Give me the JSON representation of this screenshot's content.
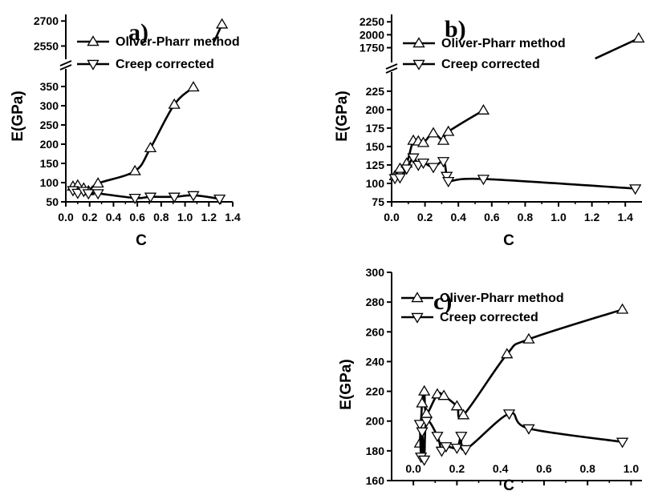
{
  "chart_data": [
    {
      "type": "line",
      "panel_label": "a)",
      "xlabel": "C",
      "ylabel": "E(GPa)",
      "xlim": [
        0.0,
        1.4
      ],
      "x_ticks": [
        "0.0",
        "0.2",
        "0.4",
        "0.6",
        "0.8",
        "1.0",
        "1.2",
        "1.4"
      ],
      "y_ticks_lower": [
        "50",
        "100",
        "150",
        "200",
        "250",
        "300",
        "350"
      ],
      "y_ticks_upper": [
        "2550",
        "2700"
      ],
      "ylim_lower": [
        50,
        375
      ],
      "ylim_upper": [
        2480,
        2730
      ],
      "axis_break": true,
      "legend_position": "top-left",
      "series": [
        {
          "name": "Oliver-Pharr method",
          "marker": "triangle-up",
          "points": [
            [
              0.06,
              90
            ],
            [
              0.1,
              93
            ],
            [
              0.15,
              85
            ],
            [
              0.19,
              78
            ],
            [
              0.27,
              98
            ],
            [
              0.58,
              130
            ],
            [
              0.71,
              190
            ],
            [
              0.91,
              303
            ],
            [
              1.07,
              348
            ],
            [
              1.31,
              2680
            ]
          ]
        },
        {
          "name": "Creep corrected",
          "marker": "triangle-down",
          "points": [
            [
              0.06,
              80
            ],
            [
              0.1,
              73
            ],
            [
              0.15,
              78
            ],
            [
              0.19,
              72
            ],
            [
              0.27,
              72
            ],
            [
              0.58,
              60
            ],
            [
              0.71,
              63
            ],
            [
              0.91,
              63
            ],
            [
              1.07,
              67
            ],
            [
              1.29,
              58
            ]
          ]
        }
      ]
    },
    {
      "type": "line",
      "panel_label": "b)",
      "xlabel": "C",
      "ylabel": "E(GPa)",
      "xlim": [
        0.0,
        1.5
      ],
      "x_ticks": [
        "0.0",
        "0.2",
        "0.4",
        "0.6",
        "0.8",
        "1.0",
        "1.2",
        "1.4"
      ],
      "y_ticks_lower": [
        "75",
        "100",
        "125",
        "150",
        "175",
        "200",
        "225"
      ],
      "y_ticks_upper": [
        "1750",
        "2000",
        "2250"
      ],
      "ylim_lower": [
        75,
        240
      ],
      "ylim_upper": [
        1650,
        2300
      ],
      "axis_break": true,
      "legend_position": "top-left",
      "series": [
        {
          "name": "Oliver-Pharr method",
          "marker": "triangle-up",
          "points": [
            [
              0.02,
              110
            ],
            [
              0.05,
              120
            ],
            [
              0.09,
              127
            ],
            [
              0.13,
              158
            ],
            [
              0.16,
              157
            ],
            [
              0.19,
              155
            ],
            [
              0.25,
              168
            ],
            [
              0.31,
              158
            ],
            [
              0.34,
              170
            ],
            [
              0.55,
              199
            ],
            [
              1.48,
              1930
            ]
          ]
        },
        {
          "name": "Creep corrected",
          "marker": "triangle-down",
          "points": [
            [
              0.02,
              107
            ],
            [
              0.05,
              108
            ],
            [
              0.09,
              120
            ],
            [
              0.13,
              135
            ],
            [
              0.16,
              125
            ],
            [
              0.19,
              128
            ],
            [
              0.25,
              122
            ],
            [
              0.31,
              130
            ],
            [
              0.33,
              110
            ],
            [
              0.34,
              103
            ],
            [
              0.55,
              106
            ],
            [
              1.46,
              93
            ]
          ]
        }
      ]
    },
    {
      "type": "line",
      "panel_label": "c)",
      "xlabel": "C",
      "ylabel": "E(GPa)",
      "xlim": [
        -0.1,
        1.05
      ],
      "x_ticks": [
        "0.0",
        "0.2",
        "0.4",
        "0.6",
        "0.8",
        "1.0"
      ],
      "y_ticks": [
        "160",
        "180",
        "200",
        "220",
        "240",
        "260",
        "280",
        "300"
      ],
      "ylim": [
        160,
        300
      ],
      "legend_position": "top-left",
      "series": [
        {
          "name": "Oliver-Pharr method",
          "marker": "triangle-up",
          "points": [
            [
              0.03,
              185
            ],
            [
              0.04,
              212
            ],
            [
              0.05,
              220
            ],
            [
              0.06,
              205
            ],
            [
              0.11,
              218
            ],
            [
              0.14,
              217
            ],
            [
              0.2,
              210
            ],
            [
              0.23,
              204
            ],
            [
              0.43,
              245
            ],
            [
              0.53,
              255
            ],
            [
              0.96,
              275
            ]
          ]
        },
        {
          "name": "Creep corrected",
          "marker": "triangle-down",
          "points": [
            [
              0.03,
              198
            ],
            [
              0.035,
              176
            ],
            [
              0.04,
              193
            ],
            [
              0.05,
              174
            ],
            [
              0.06,
              200
            ],
            [
              0.11,
              190
            ],
            [
              0.13,
              180
            ],
            [
              0.15,
              183
            ],
            [
              0.2,
              182
            ],
            [
              0.22,
              190
            ],
            [
              0.24,
              181
            ],
            [
              0.44,
              205
            ],
            [
              0.53,
              195
            ],
            [
              0.96,
              186
            ]
          ]
        }
      ]
    }
  ]
}
